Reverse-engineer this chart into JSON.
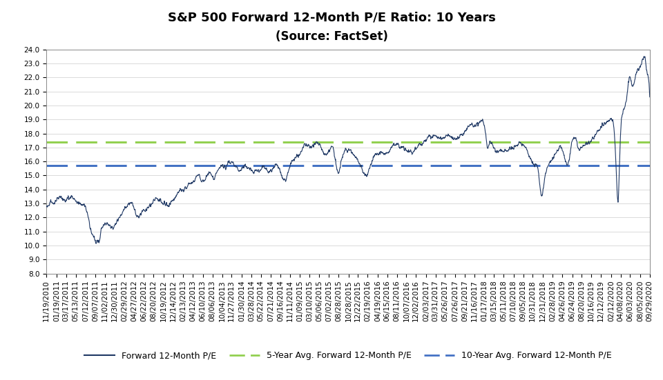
{
  "title_line1": "S&P 500 Forward 12-Month P/E Ratio: 10 Years",
  "title_line2": "(Source: FactSet)",
  "five_yr_avg": 17.4,
  "ten_yr_avg": 15.7,
  "ylim": [
    8.0,
    24.0
  ],
  "yticks": [
    8.0,
    9.0,
    10.0,
    11.0,
    12.0,
    13.0,
    14.0,
    15.0,
    16.0,
    17.0,
    18.0,
    19.0,
    20.0,
    21.0,
    22.0,
    23.0,
    24.0
  ],
  "line_color": "#1F3864",
  "five_yr_color": "#92D050",
  "ten_yr_color": "#4472C4",
  "background_color": "#FFFFFF",
  "legend_labels": [
    "Forward 12-Month P/E",
    "5-Year Avg. Forward 12-Month P/E",
    "10-Year Avg. Forward 12-Month P/E"
  ],
  "title_fontsize": 13,
  "axis_fontsize": 7.5,
  "legend_fontsize": 9,
  "xtick_dates": [
    "11/19/2010",
    "01/19/2011",
    "03/17/2011",
    "05/13/2011",
    "07/12/2011",
    "09/07/2011",
    "11/02/2011",
    "12/30/2011",
    "02/29/2012",
    "04/27/2012",
    "06/22/2012",
    "08/20/2012",
    "10/19/2012",
    "12/14/2012",
    "02/13/2013",
    "04/12/2013",
    "06/10/2013",
    "08/06/2013",
    "10/04/2013",
    "11/27/2013",
    "01/30/2014",
    "03/28/2014",
    "05/22/2014",
    "07/21/2014",
    "09/16/2014",
    "11/11/2014",
    "01/09/2015",
    "03/10/2015",
    "05/06/2015",
    "07/02/2015",
    "08/28/2015",
    "10/28/2015",
    "12/22/2015",
    "02/19/2016",
    "04/19/2016",
    "06/15/2016",
    "08/11/2016",
    "10/07/2016",
    "12/02/2016",
    "02/03/2017",
    "03/31/2017",
    "05/26/2017",
    "07/26/2017",
    "09/21/2017",
    "11/16/2017",
    "01/17/2018",
    "03/15/2018",
    "05/11/2018",
    "07/10/2018",
    "09/05/2018",
    "10/31/2018",
    "12/31/2018",
    "02/28/2019",
    "04/26/2019",
    "06/24/2019",
    "08/20/2019",
    "10/16/2019",
    "12/12/2019",
    "02/12/2020",
    "04/08/2020",
    "06/03/2020",
    "08/05/2020",
    "09/29/2020"
  ]
}
